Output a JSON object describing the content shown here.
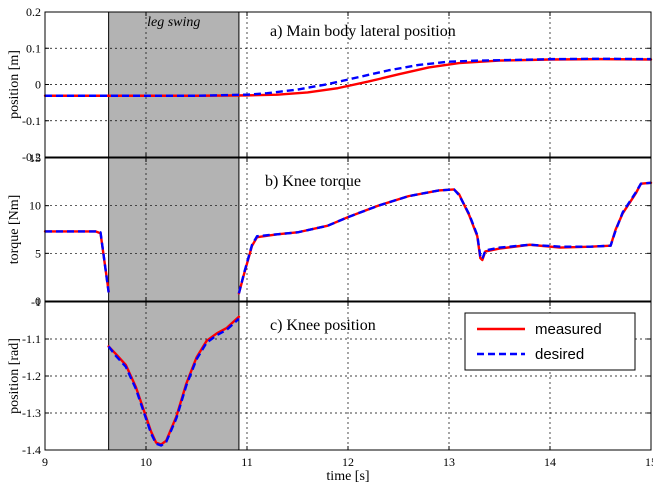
{
  "chart_data": {
    "type": "line",
    "xlabel": "time [s]",
    "xlim": [
      9,
      15
    ],
    "x_ticks": [
      9,
      10,
      11,
      12,
      13,
      14,
      15
    ],
    "x_tick_labels": [
      "9",
      "10",
      "11",
      "12",
      "13",
      "14",
      "15"
    ],
    "shaded_region": {
      "label": "leg swing",
      "x": [
        9.63,
        10.92
      ],
      "color": "#b3b3b3"
    },
    "grid": true,
    "legend": {
      "placement": "in panel c, top-right",
      "entries": [
        {
          "name": "measured",
          "color": "#ff0000",
          "style": "solid"
        },
        {
          "name": "desired",
          "color": "#0000ff",
          "style": "dashed"
        }
      ]
    },
    "panels": [
      {
        "id": "a",
        "title": "a) Main body lateral position",
        "ylabel": "position [m]",
        "ylim": [
          -0.2,
          0.2
        ],
        "y_ticks": [
          -0.2,
          -0.1,
          0,
          0.1,
          0.2
        ],
        "y_tick_labels": [
          "-0.2",
          "-0.1",
          "0",
          "0.1",
          "0.2"
        ],
        "series": [
          {
            "name": "measured",
            "x": [
              9,
              9.5,
              10,
              10.5,
              11,
              11.3,
              11.6,
              11.9,
              12.2,
              12.5,
              12.8,
              13.1,
              13.5,
              14,
              14.5,
              15
            ],
            "y": [
              -0.031,
              -0.031,
              -0.031,
              -0.031,
              -0.03,
              -0.028,
              -0.022,
              -0.01,
              0.008,
              0.028,
              0.047,
              0.059,
              0.066,
              0.069,
              0.07,
              0.069
            ]
          },
          {
            "name": "desired",
            "x": [
              9,
              9.5,
              10,
              10.5,
              11,
              11.2,
              11.5,
              11.8,
              12.1,
              12.4,
              12.7,
              13,
              13.3,
              13.7,
              14,
              14.5,
              15
            ],
            "y": [
              -0.031,
              -0.031,
              -0.031,
              -0.031,
              -0.028,
              -0.024,
              -0.014,
              0.001,
              0.02,
              0.039,
              0.054,
              0.063,
              0.066,
              0.068,
              0.07,
              0.071,
              0.07
            ]
          }
        ]
      },
      {
        "id": "b",
        "title": "b) Knee torque",
        "ylabel": "torque [Nm]",
        "ylim": [
          0,
          15
        ],
        "y_ticks": [
          0,
          5,
          10,
          15
        ],
        "y_tick_labels": [
          "0",
          "5",
          "10",
          "15"
        ],
        "series": [
          {
            "name": "measured",
            "x": [
              9,
              9.3,
              9.5,
              9.55,
              9.63,
              null,
              10.92,
              10.97,
              11.05,
              11.1,
              11.3,
              11.5,
              11.8,
              12,
              12.3,
              12.6,
              12.9,
              13.05,
              13.1,
              13.2,
              13.28,
              13.31,
              13.33,
              13.36,
              13.5,
              13.8,
              14.1,
              14.4,
              14.6,
              14.65,
              14.72,
              14.85,
              14.9,
              15
            ],
            "y": [
              7.3,
              7.3,
              7.3,
              7.1,
              1.0,
              null,
              0.8,
              2.8,
              5.8,
              6.7,
              7.0,
              7.2,
              7.9,
              8.8,
              10.0,
              11.0,
              11.6,
              11.7,
              11.2,
              9.0,
              6.8,
              4.5,
              4.3,
              5.2,
              5.5,
              5.9,
              5.6,
              5.7,
              5.8,
              7.5,
              9.2,
              11.3,
              12.3,
              12.4
            ]
          },
          {
            "name": "desired",
            "x": [
              9,
              9.3,
              9.5,
              9.55,
              9.63,
              null,
              10.92,
              10.97,
              11.05,
              11.1,
              11.3,
              11.5,
              11.8,
              12,
              12.3,
              12.6,
              12.9,
              13.05,
              13.1,
              13.2,
              13.28,
              13.31,
              13.33,
              13.36,
              13.5,
              13.8,
              14.1,
              14.4,
              14.6,
              14.65,
              14.72,
              14.85,
              14.9,
              15
            ],
            "y": [
              7.3,
              7.3,
              7.3,
              7.2,
              0.9,
              null,
              0.8,
              2.9,
              5.9,
              6.8,
              7.0,
              7.2,
              7.9,
              8.8,
              10.0,
              11.0,
              11.6,
              11.7,
              11.1,
              9.1,
              6.9,
              4.7,
              4.4,
              5.3,
              5.6,
              5.9,
              5.7,
              5.7,
              5.8,
              7.4,
              9.3,
              11.4,
              12.3,
              12.4
            ]
          }
        ]
      },
      {
        "id": "c",
        "title": "c) Knee position",
        "ylabel": "position [rad]",
        "ylim": [
          -1.4,
          -1.0
        ],
        "y_ticks": [
          -1.4,
          -1.3,
          -1.2,
          -1.1,
          -1.0
        ],
        "y_tick_labels": [
          "-1.4",
          "-1.3",
          "-1.2",
          "-1.1",
          "-1"
        ],
        "series": [
          {
            "name": "measured",
            "x": [
              9.63,
              9.7,
              9.8,
              9.9,
              10.0,
              10.05,
              10.1,
              10.15,
              10.2,
              10.3,
              10.4,
              10.5,
              10.6,
              10.7,
              10.8,
              10.92
            ],
            "y": [
              -1.12,
              -1.14,
              -1.17,
              -1.23,
              -1.31,
              -1.35,
              -1.38,
              -1.385,
              -1.375,
              -1.31,
              -1.22,
              -1.15,
              -1.105,
              -1.085,
              -1.07,
              -1.04
            ]
          },
          {
            "name": "desired",
            "x": [
              9.63,
              9.7,
              9.8,
              9.9,
              10.0,
              10.05,
              10.1,
              10.15,
              10.2,
              10.3,
              10.4,
              10.5,
              10.6,
              10.7,
              10.8,
              10.92
            ],
            "y": [
              -1.12,
              -1.145,
              -1.175,
              -1.235,
              -1.315,
              -1.355,
              -1.383,
              -1.388,
              -1.378,
              -1.315,
              -1.225,
              -1.155,
              -1.11,
              -1.09,
              -1.075,
              -1.045
            ]
          }
        ]
      }
    ]
  }
}
